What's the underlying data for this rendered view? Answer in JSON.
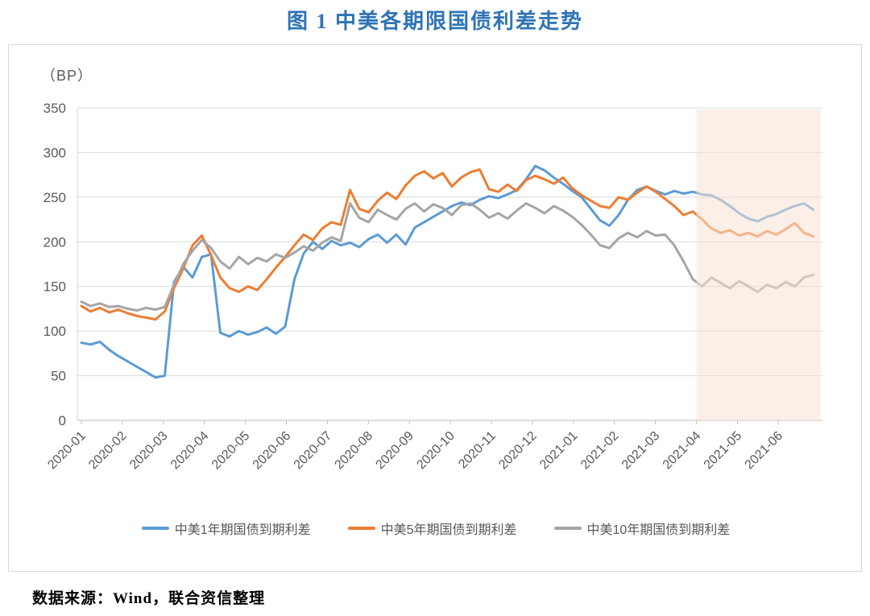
{
  "page_title": "图 1 中美各期限国债利差走势",
  "source_note": "数据来源：Wind，联合资信整理",
  "colors": {
    "title": "#2E74B5",
    "axis_text": "#595959",
    "gridline": "#D9D9D9",
    "axis_line": "#BFBFBF",
    "highlight_fill": "rgba(247,226,211,0.55)",
    "chart_border": "#D9D9D9"
  },
  "chart_data": {
    "type": "line",
    "title": "图 1 中美各期限国债利差走势",
    "y_unit_label": "（BP）",
    "ylabel": "",
    "xlabel": "",
    "ylim": [
      0,
      350
    ],
    "y_ticks": [
      0,
      50,
      100,
      150,
      200,
      250,
      300,
      350
    ],
    "x_ticks": [
      "2020-01",
      "2020-02",
      "2020-03",
      "2020-04",
      "2020-05",
      "2020-06",
      "2020-07",
      "2020-08",
      "2020-09",
      "2020-10",
      "2020-11",
      "2020-12",
      "2021-01",
      "2021-02",
      "2021-03",
      "2021-04",
      "2021-05",
      "2021-06"
    ],
    "x_months_span": 17.85,
    "grid": true,
    "legend_position": "bottom",
    "highlight_region": {
      "from_month_index": 15,
      "to_month": 18.03,
      "note": "shaded band from 2021-04 to end",
      "color_hint": "#FBEFE7"
    },
    "series": [
      {
        "name": "中美1年期国债到期利差",
        "color": "#5B9BD5",
        "values": [
          87,
          85,
          88,
          79,
          72,
          66,
          60,
          54,
          48,
          50,
          155,
          172,
          160,
          183,
          186,
          98,
          94,
          100,
          96,
          99,
          104,
          97,
          105,
          158,
          187,
          200,
          192,
          201,
          196,
          199,
          194,
          203,
          208,
          199,
          208,
          197,
          216,
          222,
          228,
          234,
          240,
          244,
          241,
          247,
          251,
          249,
          253,
          258,
          270,
          285,
          280,
          272,
          265,
          257,
          250,
          237,
          224,
          218,
          230,
          247,
          258,
          262,
          257,
          253,
          257,
          254,
          256,
          253,
          252,
          247,
          240,
          232,
          226,
          223,
          228,
          231,
          236,
          240,
          243,
          236
        ]
      },
      {
        "name": "中美5年期国债到期利差",
        "color": "#ED7D31",
        "values": [
          128,
          122,
          126,
          121,
          124,
          120,
          117,
          115,
          113,
          122,
          148,
          170,
          196,
          207,
          185,
          160,
          148,
          144,
          150,
          146,
          158,
          171,
          183,
          196,
          208,
          202,
          215,
          222,
          219,
          258,
          237,
          233,
          246,
          255,
          248,
          263,
          274,
          279,
          271,
          277,
          262,
          272,
          278,
          281,
          259,
          256,
          264,
          257,
          269,
          274,
          270,
          265,
          272,
          260,
          252,
          246,
          240,
          238,
          250,
          247,
          255,
          262,
          256,
          248,
          240,
          230,
          234,
          225,
          215,
          210,
          213,
          207,
          210,
          206,
          212,
          208,
          214,
          221,
          210,
          206
        ]
      },
      {
        "name": "中美10年期国债到期利差",
        "color": "#A5A5A5",
        "values": [
          133,
          128,
          131,
          127,
          128,
          125,
          123,
          126,
          124,
          127,
          152,
          175,
          190,
          202,
          193,
          178,
          170,
          183,
          175,
          182,
          178,
          186,
          182,
          188,
          195,
          190,
          199,
          205,
          201,
          243,
          227,
          222,
          236,
          230,
          225,
          237,
          243,
          234,
          242,
          238,
          230,
          241,
          243,
          236,
          227,
          232,
          226,
          235,
          243,
          238,
          232,
          240,
          235,
          228,
          219,
          208,
          196,
          193,
          204,
          210,
          205,
          212,
          207,
          208,
          196,
          178,
          158,
          150,
          160,
          154,
          148,
          156,
          150,
          144,
          152,
          148,
          155,
          150,
          160,
          163
        ]
      }
    ]
  }
}
